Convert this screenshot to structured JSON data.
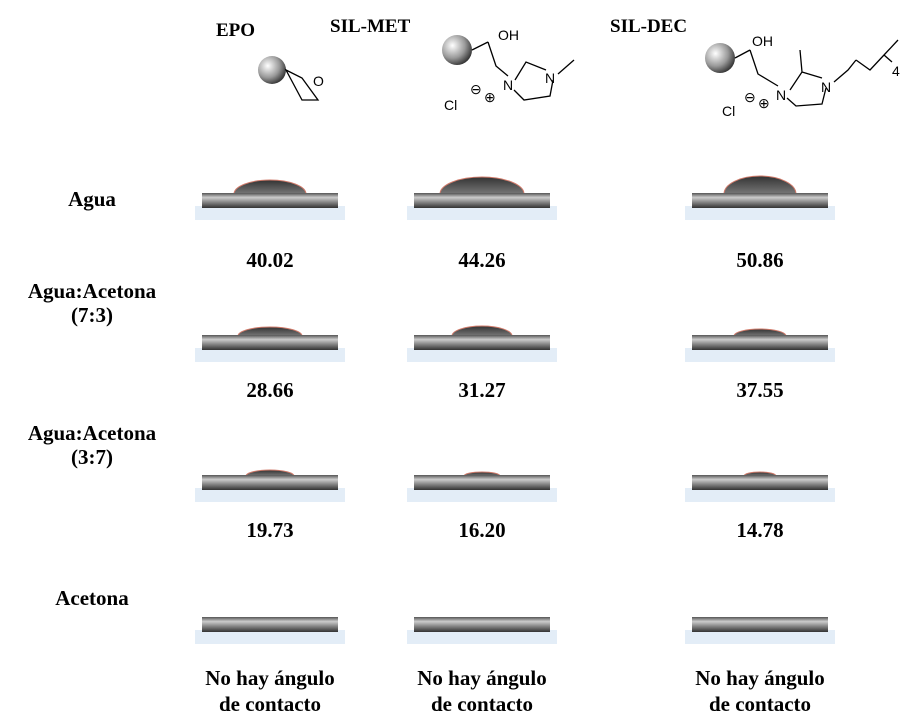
{
  "columns": [
    "EPO",
    "SIL-MET",
    "SIL-DEC"
  ],
  "structures": [
    {
      "labels": [
        "O"
      ]
    },
    {
      "labels": [
        "OH",
        "N",
        "N",
        "Cl",
        "⊖",
        "⊕"
      ]
    },
    {
      "labels": [
        "OH",
        "N",
        "N",
        "Cl",
        "⊖",
        "⊕",
        "4"
      ]
    }
  ],
  "rows": [
    {
      "label": [
        "Agua"
      ],
      "cells": [
        [
          "40.02"
        ],
        [
          "44.26"
        ],
        [
          "50.86"
        ]
      ]
    },
    {
      "label": [
        "Agua:Acetona",
        "(7:3)"
      ],
      "cells": [
        [
          "28.66"
        ],
        [
          "31.27"
        ],
        [
          "37.55"
        ]
      ]
    },
    {
      "label": [
        "Agua:Acetona",
        "(3:7)"
      ],
      "cells": [
        [
          "19.73"
        ],
        [
          "16.20"
        ],
        [
          "14.78"
        ]
      ]
    },
    {
      "label": [
        "Acetona"
      ],
      "cells": [
        [
          "No hay ángulo",
          "de contacto"
        ],
        [
          "No hay ángulo",
          "de contacto"
        ],
        [
          "No hay ángulo",
          "de contacto"
        ]
      ]
    }
  ]
}
